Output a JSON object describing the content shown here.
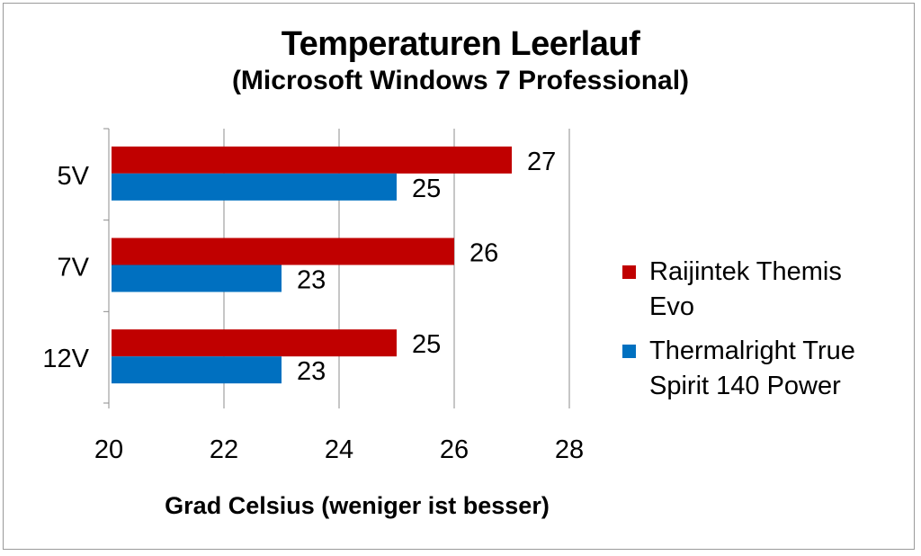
{
  "chart_data": {
    "type": "bar",
    "orientation": "horizontal",
    "title": "Temperaturen Leerlauf",
    "subtitle": "(Microsoft Windows 7 Professional)",
    "xlabel": "Grad Celsius (weniger ist besser)",
    "ylabel": "",
    "categories": [
      "5V",
      "7V",
      "12V"
    ],
    "series": [
      {
        "name": "Raijintek Themis Evo",
        "values": [
          27,
          26,
          25
        ],
        "color": "#c00000"
      },
      {
        "name": "Thermalright True Spirit 140 Power",
        "values": [
          25,
          23,
          23
        ],
        "color": "#0070c0"
      }
    ],
    "xlim": [
      20,
      28
    ],
    "xticks": [
      20,
      22,
      24,
      26,
      28
    ],
    "grid": true,
    "legend_position": "right",
    "data_labels": true
  },
  "legend": {
    "items": [
      {
        "label_line1": "Raijintek Themis",
        "label_line2": "Evo"
      },
      {
        "label_line1": "Thermalright True",
        "label_line2": "Spirit 140 Power"
      }
    ]
  }
}
